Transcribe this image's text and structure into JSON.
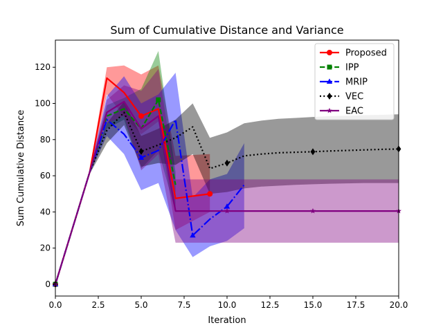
{
  "chart_data": {
    "type": "line",
    "title": "Sum of  Cumulative Distance and Variance",
    "xlabel": "Iteration",
    "ylabel": "Sum Cumulative Distance",
    "xlim": [
      0,
      20
    ],
    "ylim": [
      -6.5,
      135
    ],
    "x_ticks": [
      0,
      2.5,
      5,
      7.5,
      10,
      12.5,
      15,
      17.5,
      20
    ],
    "x_tick_labels": [
      "0.0",
      "2.5",
      "5.0",
      "7.5",
      "10.0",
      "12.5",
      "15.0",
      "17.5",
      "20.0"
    ],
    "y_ticks": [
      0,
      20,
      40,
      60,
      80,
      100,
      120
    ],
    "y_tick_labels": [
      "0",
      "20",
      "40",
      "60",
      "80",
      "100",
      "120"
    ],
    "grid": false,
    "legend_position": "upper right",
    "series": [
      {
        "name": "Proposed",
        "color": "#ff0000",
        "marker": "circle",
        "line_style": "solid",
        "marker_x": [
          0,
          5,
          9
        ],
        "x": [
          0,
          2,
          3,
          4,
          5,
          6,
          7,
          9
        ],
        "y": [
          0,
          62,
          114,
          106,
          93,
          97,
          47.5,
          50
        ],
        "band_upper": [
          1,
          63,
          120,
          121,
          116,
          121,
          71,
          72
        ],
        "band_lower": [
          -1,
          61,
          105,
          93,
          83,
          90,
          30,
          40
        ]
      },
      {
        "name": "IPP",
        "color": "#008000",
        "marker": "square",
        "line_style": "dashed",
        "marker_x": [
          0,
          6
        ],
        "x": [
          0,
          2,
          3,
          4,
          5,
          6,
          7
        ],
        "y": [
          0,
          62,
          93,
          97,
          86,
          102,
          55
        ],
        "band_upper": [
          1,
          63,
          99,
          103,
          108,
          129,
          62
        ],
        "band_lower": [
          -1,
          61,
          86,
          91,
          64,
          74,
          40
        ]
      },
      {
        "name": "MRIP",
        "color": "#0000ff",
        "marker": "triangle",
        "line_style": "dashdot",
        "marker_x": [
          0,
          5,
          8,
          10
        ],
        "x": [
          0,
          2,
          3,
          4,
          5,
          6,
          7,
          8,
          9,
          10,
          11
        ],
        "y": [
          0,
          62,
          91,
          83,
          70,
          74,
          91,
          27,
          36,
          43,
          55
        ],
        "band_upper": [
          1,
          63,
          104,
          115,
          100,
          105,
          117,
          48,
          58,
          61,
          78
        ],
        "band_lower": [
          -1,
          61,
          82,
          72,
          52,
          56,
          30,
          15,
          21,
          24,
          31
        ]
      },
      {
        "name": "VEC",
        "color": "#000000",
        "marker": "diamond",
        "line_style": "dotted",
        "marker_x": [
          0,
          5,
          10,
          15,
          20
        ],
        "x": [
          0,
          2,
          3,
          4,
          5,
          6,
          7,
          8,
          9,
          10,
          11,
          12,
          13,
          14,
          15,
          16,
          17,
          18,
          19,
          20
        ],
        "y": [
          0,
          62,
          85,
          95,
          73.5,
          77,
          81,
          87,
          64,
          67,
          71,
          72,
          72.7,
          73,
          73.3,
          73.7,
          74,
          74.3,
          74.6,
          74.8
        ],
        "band_upper": [
          1,
          63,
          89,
          101,
          82,
          86,
          91,
          100,
          81,
          84,
          89,
          90.5,
          91.5,
          92,
          92.5,
          93,
          93.2,
          93.5,
          93.7,
          94
        ],
        "band_lower": [
          -1,
          61,
          78,
          88,
          65,
          67,
          66,
          72,
          50,
          51,
          53,
          54,
          54.5,
          55,
          55.3,
          55.6,
          55.8,
          56,
          56,
          56
        ]
      },
      {
        "name": "EAC",
        "color": "#800080",
        "marker": "star",
        "line_style": "solid",
        "marker_x": [
          0,
          10,
          15,
          20
        ],
        "x": [
          0,
          2,
          3,
          4,
          5,
          6,
          7,
          8,
          9,
          10,
          11,
          12,
          13,
          14,
          15,
          16,
          17,
          18,
          19,
          20
        ],
        "y": [
          0,
          62,
          95,
          101,
          86,
          93,
          40.5,
          40.5,
          40.5,
          40.5,
          40.5,
          40.5,
          40.5,
          40.5,
          40.5,
          40.5,
          40.5,
          40.5,
          40.5,
          40.5
        ],
        "band_upper": [
          1,
          63,
          102,
          110,
          107,
          119,
          58,
          58,
          58,
          58,
          58,
          58,
          58,
          58,
          58,
          58,
          58,
          58,
          58,
          58
        ],
        "band_lower": [
          -1,
          61,
          89,
          93,
          63,
          72,
          23,
          23,
          23,
          23,
          23,
          23,
          23,
          23,
          23,
          23,
          23,
          23,
          23,
          23
        ]
      }
    ]
  }
}
